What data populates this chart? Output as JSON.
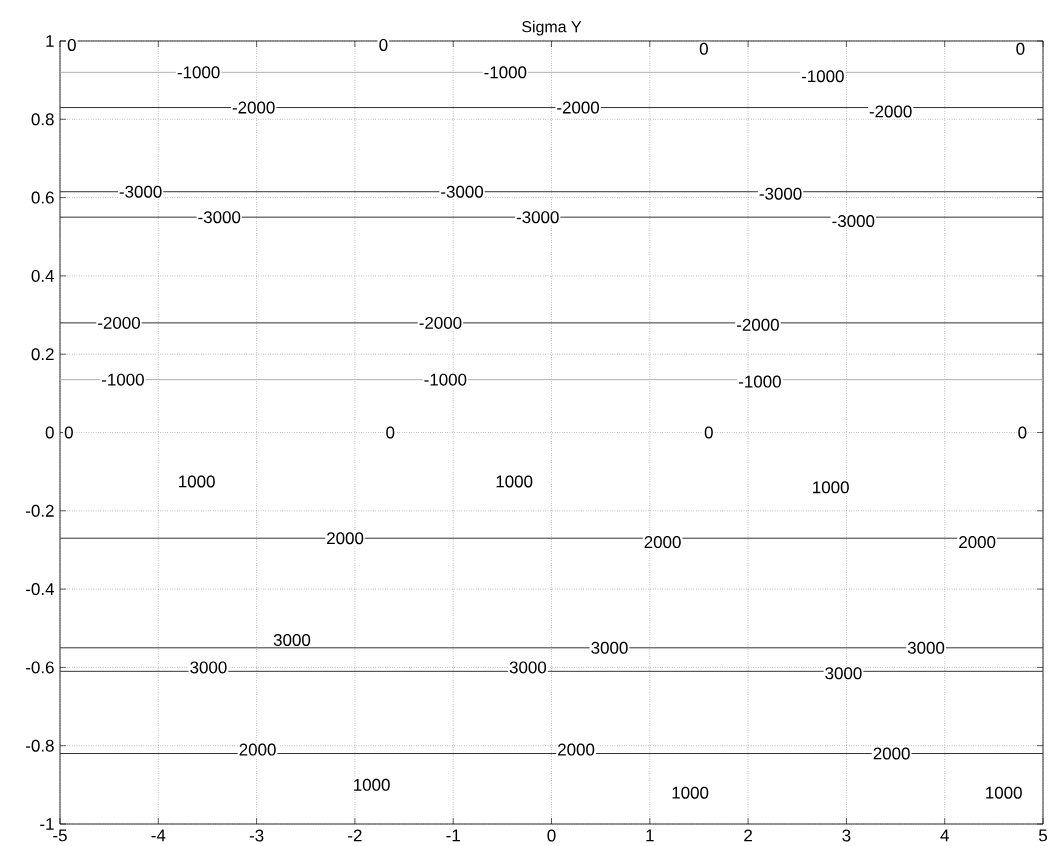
{
  "chart_data": {
    "type": "line",
    "title": "Sigma Y",
    "ref_lines": [
      {
        "axis": "y",
        "value": 0.92,
        "color": "#b0b0b0"
      },
      {
        "axis": "y",
        "value": 0.83,
        "color": "#333333"
      },
      {
        "axis": "y",
        "value": 0.615,
        "color": "#333333"
      },
      {
        "axis": "y",
        "value": 0.55,
        "color": "#333333"
      },
      {
        "axis": "y",
        "value": 0.28,
        "color": "#333333"
      },
      {
        "axis": "y",
        "value": 0.135,
        "color": "#b0b0b0"
      },
      {
        "axis": "y",
        "value": -0.27,
        "color": "#333333"
      },
      {
        "axis": "y",
        "value": -0.55,
        "color": "#333333"
      },
      {
        "axis": "y",
        "value": -0.61,
        "color": "#333333"
      },
      {
        "axis": "y",
        "value": -0.82,
        "color": "#333333"
      }
    ],
    "xlim": [
      -5,
      5
    ],
    "ylim": [
      -1,
      1
    ],
    "xticks": [
      -5,
      -4,
      -3,
      -2,
      -1,
      0,
      1,
      2,
      3,
      4,
      5
    ],
    "yticks": [
      -1,
      -0.8,
      -0.6,
      -0.4,
      -0.2,
      0,
      0.2,
      0.4,
      0.6,
      0.8,
      1
    ],
    "grid": true,
    "annotations": [
      {
        "text": "0",
        "x": -4.88,
        "y": 0.99
      },
      {
        "text": "0",
        "x": -1.71,
        "y": 0.99
      },
      {
        "text": "0",
        "x": 1.55,
        "y": 0.98
      },
      {
        "text": "0",
        "x": 4.77,
        "y": 0.98
      },
      {
        "text": "-1000",
        "x": -3.59,
        "y": 0.92
      },
      {
        "text": "-1000",
        "x": -0.47,
        "y": 0.92
      },
      {
        "text": "-1000",
        "x": 2.76,
        "y": 0.91
      },
      {
        "text": "-2000",
        "x": -3.03,
        "y": 0.83
      },
      {
        "text": "-2000",
        "x": 0.27,
        "y": 0.83
      },
      {
        "text": "-2000",
        "x": 3.45,
        "y": 0.82
      },
      {
        "text": "-3000",
        "x": -4.18,
        "y": 0.615
      },
      {
        "text": "-3000",
        "x": -0.91,
        "y": 0.615
      },
      {
        "text": "-3000",
        "x": 2.33,
        "y": 0.61
      },
      {
        "text": "-3000",
        "x": -3.38,
        "y": 0.55
      },
      {
        "text": "-3000",
        "x": -0.14,
        "y": 0.55
      },
      {
        "text": "-3000",
        "x": 3.07,
        "y": 0.54
      },
      {
        "text": "-2000",
        "x": -4.4,
        "y": 0.28
      },
      {
        "text": "-2000",
        "x": -1.13,
        "y": 0.28
      },
      {
        "text": "-2000",
        "x": 2.1,
        "y": 0.275
      },
      {
        "text": "-1000",
        "x": -4.36,
        "y": 0.135
      },
      {
        "text": "-1000",
        "x": -1.08,
        "y": 0.135
      },
      {
        "text": "-1000",
        "x": 2.12,
        "y": 0.13
      },
      {
        "text": "0",
        "x": -4.91,
        "y": 0
      },
      {
        "text": "0",
        "x": -1.64,
        "y": 0
      },
      {
        "text": "0",
        "x": 1.6,
        "y": 0
      },
      {
        "text": "0",
        "x": 4.79,
        "y": 0
      },
      {
        "text": "1000",
        "x": -3.61,
        "y": -0.125
      },
      {
        "text": "1000",
        "x": -0.38,
        "y": -0.125
      },
      {
        "text": "1000",
        "x": 2.84,
        "y": -0.14
      },
      {
        "text": "2000",
        "x": -2.1,
        "y": -0.27
      },
      {
        "text": "2000",
        "x": 1.13,
        "y": -0.28
      },
      {
        "text": "2000",
        "x": 4.33,
        "y": -0.28
      },
      {
        "text": "3000",
        "x": -2.64,
        "y": -0.53
      },
      {
        "text": "3000",
        "x": 0.59,
        "y": -0.55
      },
      {
        "text": "3000",
        "x": 3.81,
        "y": -0.55
      },
      {
        "text": "3000",
        "x": -3.49,
        "y": -0.6
      },
      {
        "text": "3000",
        "x": -0.24,
        "y": -0.6
      },
      {
        "text": "3000",
        "x": 2.97,
        "y": -0.615
      },
      {
        "text": "2000",
        "x": -2.99,
        "y": -0.81
      },
      {
        "text": "2000",
        "x": 0.25,
        "y": -0.81
      },
      {
        "text": "2000",
        "x": 3.46,
        "y": -0.82
      },
      {
        "text": "1000",
        "x": -1.83,
        "y": -0.9
      },
      {
        "text": "1000",
        "x": 1.41,
        "y": -0.92
      },
      {
        "text": "1000",
        "x": 4.6,
        "y": -0.92
      }
    ]
  }
}
